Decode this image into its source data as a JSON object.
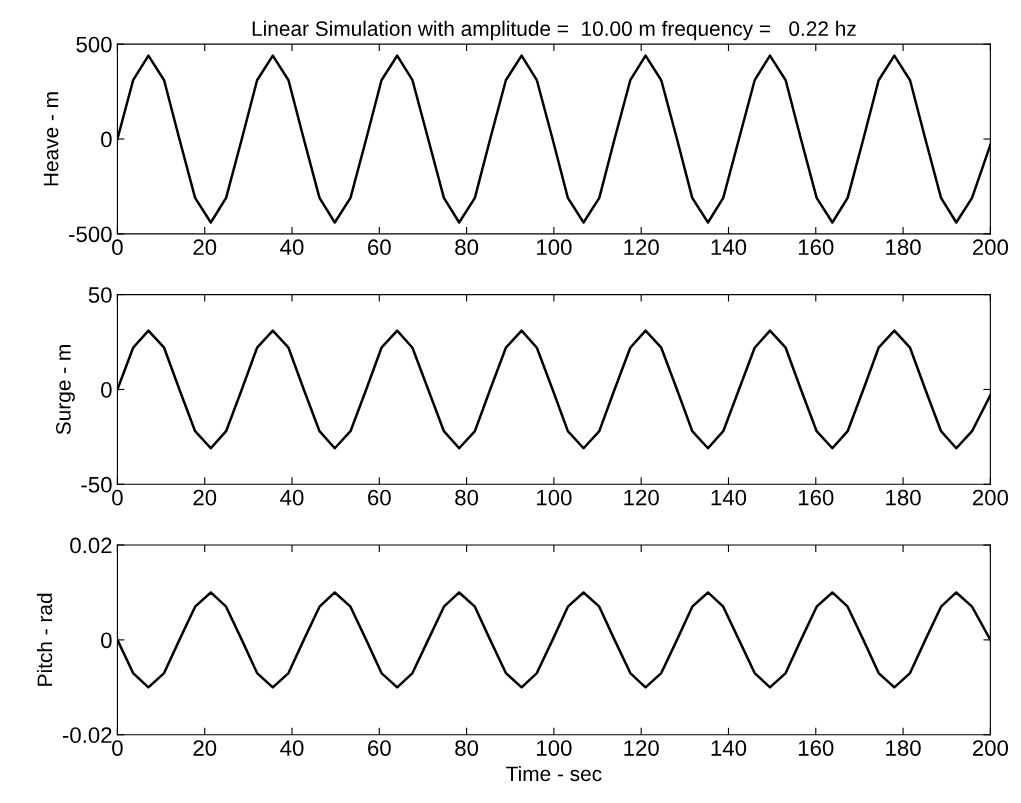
{
  "chart_data": [
    {
      "type": "line",
      "title": "Linear Simulation with amplitude =  10.00 m frequency =   0.22 hz",
      "ylabel": "Heave - m",
      "xlim": [
        0,
        200
      ],
      "xticks": [
        0,
        20,
        40,
        60,
        80,
        100,
        120,
        140,
        160,
        180,
        200
      ],
      "ylim": [
        -500,
        500
      ],
      "yticks": [
        -500,
        0,
        500
      ],
      "grid": false,
      "x": [
        0,
        3.6,
        7.1,
        10.7,
        14.2,
        17.8,
        21.4,
        24.9,
        28.5,
        32,
        35.6,
        39.2,
        42.7,
        46.3,
        49.8,
        53.4,
        57,
        60.5,
        64.1,
        67.6,
        71.2,
        74.8,
        78.3,
        81.9,
        85.4,
        89,
        92.6,
        96.1,
        99.7,
        103.2,
        106.8,
        110.4,
        113.9,
        117.5,
        121,
        124.6,
        128.2,
        131.7,
        135.3,
        138.8,
        142.4,
        146,
        149.5,
        153.1,
        156.6,
        160.2,
        163.8,
        167.3,
        170.9,
        174.4,
        178,
        181.6,
        185.1,
        188.7,
        192.2,
        195.8,
        200
      ],
      "series": [
        {
          "color": "#000000",
          "values": [
            0,
            310,
            440,
            310,
            0,
            -310,
            -440,
            -310,
            0,
            310,
            440,
            310,
            0,
            -310,
            -440,
            -310,
            0,
            310,
            440,
            310,
            0,
            -310,
            -440,
            -310,
            0,
            310,
            440,
            310,
            0,
            -310,
            -440,
            -310,
            0,
            310,
            440,
            310,
            0,
            -310,
            -440,
            -310,
            0,
            310,
            440,
            310,
            0,
            -310,
            -440,
            -310,
            0,
            310,
            440,
            310,
            0,
            -310,
            -440,
            -310,
            -30
          ]
        }
      ]
    },
    {
      "type": "line",
      "ylabel": "Surge - m",
      "xlim": [
        0,
        200
      ],
      "xticks": [
        0,
        20,
        40,
        60,
        80,
        100,
        120,
        140,
        160,
        180,
        200
      ],
      "ylim": [
        -50,
        50
      ],
      "yticks": [
        -50,
        0,
        50
      ],
      "grid": false,
      "x": [
        0,
        3.6,
        7.1,
        10.7,
        14.2,
        17.8,
        21.4,
        24.9,
        28.5,
        32,
        35.6,
        39.2,
        42.7,
        46.3,
        49.8,
        53.4,
        57,
        60.5,
        64.1,
        67.6,
        71.2,
        74.8,
        78.3,
        81.9,
        85.4,
        89,
        92.6,
        96.1,
        99.7,
        103.2,
        106.8,
        110.4,
        113.9,
        117.5,
        121,
        124.6,
        128.2,
        131.7,
        135.3,
        138.8,
        142.4,
        146,
        149.5,
        153.1,
        156.6,
        160.2,
        163.8,
        167.3,
        170.9,
        174.4,
        178,
        181.6,
        185.1,
        188.7,
        192.2,
        195.8,
        200
      ],
      "series": [
        {
          "color": "#000000",
          "values": [
            0,
            22,
            31,
            22,
            0,
            -22,
            -31,
            -22,
            0,
            22,
            31,
            22,
            0,
            -22,
            -31,
            -22,
            0,
            22,
            31,
            22,
            0,
            -22,
            -31,
            -22,
            0,
            22,
            31,
            22,
            0,
            -22,
            -31,
            -22,
            0,
            22,
            31,
            22,
            0,
            -22,
            -31,
            -22,
            0,
            22,
            31,
            22,
            0,
            -22,
            -31,
            -22,
            0,
            22,
            31,
            22,
            0,
            -22,
            -31,
            -22,
            -3
          ]
        }
      ]
    },
    {
      "type": "line",
      "ylabel": "Pitch - rad",
      "xlabel": "Time - sec",
      "xlim": [
        0,
        200
      ],
      "xticks": [
        0,
        20,
        40,
        60,
        80,
        100,
        120,
        140,
        160,
        180,
        200
      ],
      "ylim": [
        -0.02,
        0.02
      ],
      "yticks": [
        -0.02,
        0,
        0.02
      ],
      "grid": false,
      "x": [
        0,
        3.6,
        7.1,
        10.7,
        14.2,
        17.8,
        21.4,
        24.9,
        28.5,
        32,
        35.6,
        39.2,
        42.7,
        46.3,
        49.8,
        53.4,
        57,
        60.5,
        64.1,
        67.6,
        71.2,
        74.8,
        78.3,
        81.9,
        85.4,
        89,
        92.6,
        96.1,
        99.7,
        103.2,
        106.8,
        110.4,
        113.9,
        117.5,
        121,
        124.6,
        128.2,
        131.7,
        135.3,
        138.8,
        142.4,
        146,
        149.5,
        153.1,
        156.6,
        160.2,
        163.8,
        167.3,
        170.9,
        174.4,
        178,
        181.6,
        185.1,
        188.7,
        192.2,
        195.8,
        200
      ],
      "series": [
        {
          "color": "#000000",
          "values": [
            0,
            -0.007,
            -0.01,
            -0.007,
            0,
            0.007,
            0.01,
            0.007,
            0,
            -0.007,
            -0.01,
            -0.007,
            0,
            0.007,
            0.01,
            0.007,
            0,
            -0.007,
            -0.01,
            -0.007,
            0,
            0.007,
            0.01,
            0.007,
            0,
            -0.007,
            -0.01,
            -0.007,
            0,
            0.007,
            0.01,
            0.007,
            0,
            -0.007,
            -0.01,
            -0.007,
            0,
            0.007,
            0.01,
            0.007,
            0,
            -0.007,
            -0.01,
            -0.007,
            0,
            0.007,
            0.01,
            0.007,
            0,
            -0.007,
            -0.01,
            -0.007,
            0,
            0.007,
            0.01,
            0.007,
            0
          ]
        }
      ]
    }
  ]
}
